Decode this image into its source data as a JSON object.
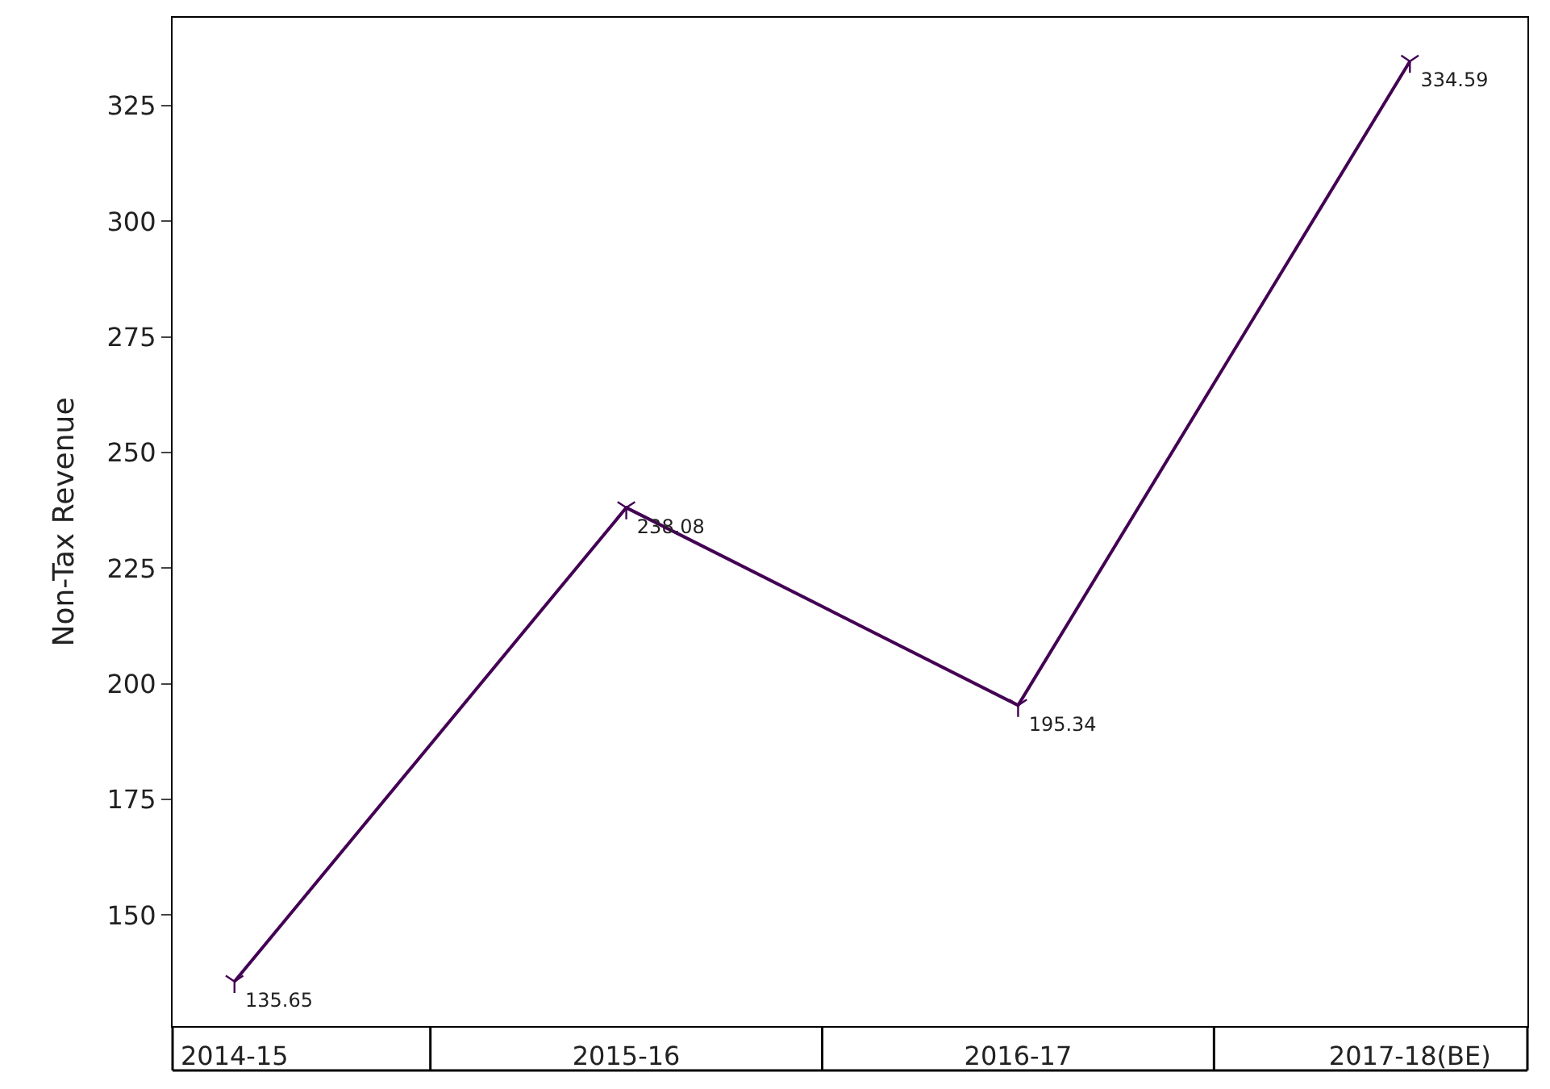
{
  "chart_data": {
    "type": "line",
    "ylabel": "Non-Tax Revenue",
    "categories": [
      "2014-15",
      "2015-16",
      "2016-17",
      "2017-18(BE)"
    ],
    "series": [
      {
        "color": "#440154",
        "values": [
          135.65,
          238.08,
          195.34,
          334.59
        ]
      }
    ],
    "ylim": [
      126,
      344
    ],
    "yticks": [
      150,
      175,
      200,
      225,
      250,
      275,
      300,
      325
    ],
    "data_labels": true,
    "marker": "cross",
    "line_style": "solid",
    "legend": false
  }
}
